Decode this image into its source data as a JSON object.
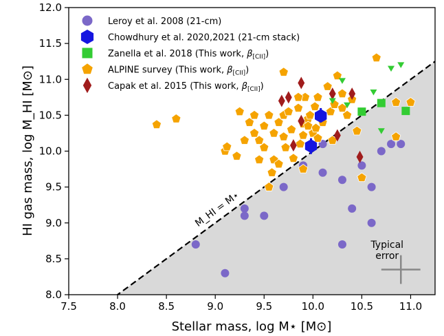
{
  "chart_data": {
    "type": "scatter",
    "xlabel": "Stellar mass, log M⋆ [M⊙]",
    "ylabel": "HI gas mass, log M_HI [M⊙]",
    "xlim": [
      7.5,
      11.25
    ],
    "ylim": [
      8.0,
      12.0
    ],
    "x_ticks": [
      "7.5",
      "8.0",
      "8.5",
      "9.0",
      "9.5",
      "10.0",
      "10.5",
      "11.0"
    ],
    "y_ticks": [
      "8.0",
      "8.5",
      "9.0",
      "9.5",
      "10.0",
      "10.5",
      "11.0",
      "11.5",
      "12.0"
    ],
    "grid": false,
    "legend_position": "top-left",
    "colors": {
      "leroy": "#7b68c8",
      "chowdhury": "#1515e0",
      "zanella": "#33cc33",
      "alpine": "#f5a300",
      "capak": "#a01c1c",
      "shade": "#d9d9d9",
      "error_bar": "#888888"
    },
    "series": [
      {
        "name": "Leroy et al. 2008 (21-cm)",
        "marker": "circle",
        "points": [
          [
            8.8,
            8.7
          ],
          [
            9.1,
            8.3
          ],
          [
            9.3,
            9.2
          ],
          [
            9.3,
            9.1
          ],
          [
            9.5,
            9.1
          ],
          [
            9.7,
            9.5
          ],
          [
            9.9,
            9.8
          ],
          [
            10.1,
            9.7
          ],
          [
            10.3,
            9.6
          ],
          [
            10.3,
            8.7
          ],
          [
            10.4,
            9.2
          ],
          [
            10.5,
            9.8
          ],
          [
            10.6,
            9.5
          ],
          [
            10.6,
            9.0
          ],
          [
            10.7,
            10.0
          ],
          [
            10.8,
            10.1
          ],
          [
            10.9,
            10.1
          ],
          [
            10.1,
            10.1
          ]
        ]
      },
      {
        "name": "Chowdhury et al. 2020,2021 (21-cm stack)",
        "marker": "hexagon",
        "points": [
          [
            10.08,
            10.49
          ],
          [
            9.98,
            10.07
          ]
        ]
      },
      {
        "name": "Zanella et al. 2018 (This work, β[CII])",
        "label_main": "Zanella et al. 2018 (This work, ",
        "label_tail": ")",
        "marker": "square",
        "points": [
          [
            10.5,
            10.55
          ],
          [
            10.7,
            10.67
          ],
          [
            10.95,
            10.56
          ]
        ]
      },
      {
        "name": "ALPINE survey (This work, β[CII])",
        "label_main": "ALPINE survey (This work, ",
        "label_tail": ")",
        "marker": "pentagon",
        "points": [
          [
            8.4,
            10.37
          ],
          [
            8.6,
            10.45
          ],
          [
            9.1,
            10.0
          ],
          [
            9.12,
            10.06
          ],
          [
            9.22,
            9.93
          ],
          [
            9.25,
            10.55
          ],
          [
            9.3,
            10.15
          ],
          [
            9.35,
            10.4
          ],
          [
            9.4,
            10.5
          ],
          [
            9.4,
            10.25
          ],
          [
            9.45,
            10.15
          ],
          [
            9.45,
            9.88
          ],
          [
            9.5,
            10.35
          ],
          [
            9.5,
            10.05
          ],
          [
            9.55,
            10.5
          ],
          [
            9.58,
            9.7
          ],
          [
            9.6,
            9.88
          ],
          [
            9.6,
            10.25
          ],
          [
            9.65,
            9.82
          ],
          [
            9.65,
            10.4
          ],
          [
            9.7,
            10.5
          ],
          [
            9.7,
            10.2
          ],
          [
            9.72,
            10.05
          ],
          [
            9.75,
            10.55
          ],
          [
            9.78,
            10.3
          ],
          [
            9.8,
            9.9
          ],
          [
            9.85,
            10.6
          ],
          [
            9.87,
            10.1
          ],
          [
            9.9,
            10.22
          ],
          [
            9.9,
            10.38
          ],
          [
            9.92,
            10.75
          ],
          [
            9.95,
            10.45
          ],
          [
            9.97,
            10.5
          ],
          [
            10.0,
            10.25
          ],
          [
            10.02,
            10.62
          ],
          [
            10.03,
            10.32
          ],
          [
            10.05,
            10.75
          ],
          [
            10.1,
            10.4
          ],
          [
            10.15,
            10.9
          ],
          [
            10.18,
            10.55
          ],
          [
            10.2,
            10.15
          ],
          [
            10.22,
            10.65
          ],
          [
            10.25,
            11.05
          ],
          [
            10.3,
            10.8
          ],
          [
            10.3,
            10.6
          ],
          [
            10.35,
            10.5
          ],
          [
            10.4,
            10.72
          ],
          [
            10.45,
            10.28
          ],
          [
            10.5,
            9.63
          ],
          [
            10.65,
            11.3
          ],
          [
            10.85,
            10.2
          ],
          [
            10.85,
            10.68
          ],
          [
            11.0,
            10.68
          ],
          [
            9.7,
            11.1
          ],
          [
            9.85,
            10.75
          ],
          [
            9.95,
            10.35
          ],
          [
            10.05,
            10.18
          ],
          [
            9.9,
            9.75
          ],
          [
            9.55,
            9.5
          ]
        ]
      },
      {
        "name": "Capak et al. 2015 (This work, β[CII])",
        "label_main": "Capak et al. 2015 (This work, ",
        "label_tail": ")",
        "marker": "thin-diamond",
        "points": [
          [
            9.68,
            10.7
          ],
          [
            9.75,
            10.75
          ],
          [
            9.8,
            10.08
          ],
          [
            9.88,
            10.95
          ],
          [
            9.88,
            10.42
          ],
          [
            10.2,
            10.8
          ],
          [
            10.25,
            10.22
          ],
          [
            10.4,
            10.8
          ],
          [
            10.48,
            9.92
          ]
        ]
      },
      {
        "name": "Upper limits",
        "marker": "triangle-down",
        "show_in_legend": false,
        "points": [
          [
            10.2,
            10.7
          ],
          [
            10.3,
            10.98
          ],
          [
            10.35,
            10.64
          ],
          [
            10.62,
            10.82
          ],
          [
            10.7,
            10.28
          ],
          [
            10.8,
            11.15
          ],
          [
            10.9,
            11.2
          ]
        ]
      }
    ],
    "relation_line": {
      "label": "M_HI = M⋆",
      "style": "dashed"
    },
    "error_annotation": {
      "label_line1": "Typical",
      "label_line2": "error",
      "center": [
        10.9,
        8.35
      ],
      "x_err": 0.2,
      "y_err": 0.2
    }
  }
}
